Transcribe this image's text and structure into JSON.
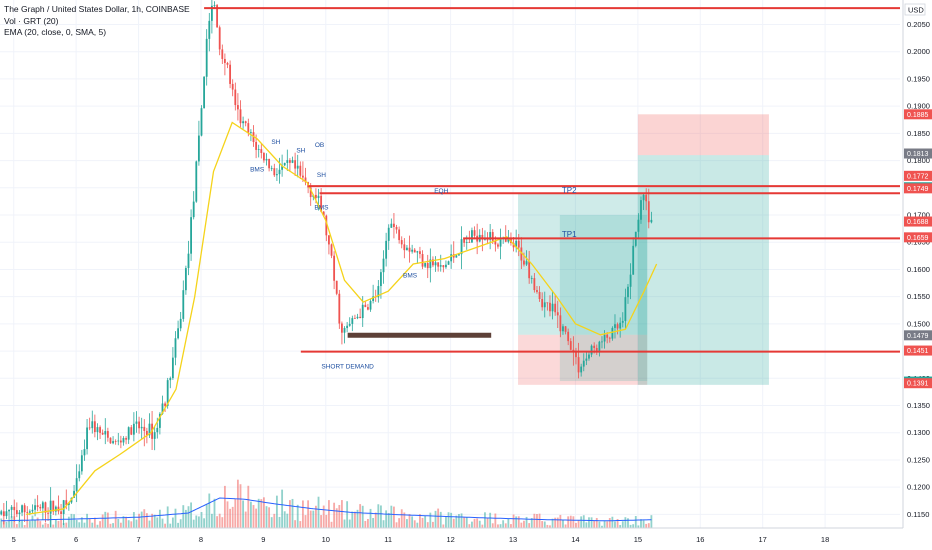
{
  "legend": {
    "title": "The Graph / United States Dollar, 1h, COINBASE",
    "vol": "Vol · GRT (20)",
    "ema": "EMA (20, close, 0, SMA, 5)"
  },
  "chart_data": {
    "type": "candlestick",
    "currency_label": "USD",
    "ylim": [
      0.1125,
      0.2095
    ],
    "y_ticks": [
      "0.2050",
      "0.2000",
      "0.1950",
      "0.1900",
      "0.1850",
      "0.1800",
      "0.1750",
      "0.1700",
      "0.1650",
      "0.1600",
      "0.1550",
      "0.1500",
      "0.1450",
      "0.1400",
      "0.1350",
      "0.1300",
      "0.1250",
      "0.1200",
      "0.1150"
    ],
    "x_ticks": [
      {
        "label": "5",
        "day": 5
      },
      {
        "label": "6",
        "day": 6
      },
      {
        "label": "7",
        "day": 7
      },
      {
        "label": "8",
        "day": 8
      },
      {
        "label": "9",
        "day": 9
      },
      {
        "label": "10",
        "day": 10
      },
      {
        "label": "11",
        "day": 11
      },
      {
        "label": "12",
        "day": 12
      },
      {
        "label": "13",
        "day": 13
      },
      {
        "label": "14",
        "day": 14
      },
      {
        "label": "15",
        "day": 15
      },
      {
        "label": "16",
        "day": 16
      },
      {
        "label": "17",
        "day": 17
      },
      {
        "label": "18",
        "day": 18
      }
    ],
    "xlim_days": [
      4.78,
      19.2
    ],
    "price_keypoints": [
      [
        4.8,
        0.115
      ],
      [
        5.5,
        0.116
      ],
      [
        5.9,
        0.1165
      ],
      [
        6.05,
        0.12
      ],
      [
        6.25,
        0.132
      ],
      [
        6.5,
        0.129
      ],
      [
        6.7,
        0.128
      ],
      [
        7.0,
        0.131
      ],
      [
        7.3,
        0.13
      ],
      [
        7.5,
        0.138
      ],
      [
        7.7,
        0.15
      ],
      [
        7.85,
        0.165
      ],
      [
        8.0,
        0.182
      ],
      [
        8.15,
        0.205
      ],
      [
        8.25,
        0.209
      ],
      [
        8.35,
        0.2
      ],
      [
        8.45,
        0.198
      ],
      [
        8.6,
        0.189
      ],
      [
        8.9,
        0.183
      ],
      [
        9.2,
        0.178
      ],
      [
        9.5,
        0.179
      ],
      [
        9.7,
        0.176
      ],
      [
        9.85,
        0.174
      ],
      [
        10.0,
        0.17
      ],
      [
        10.15,
        0.16
      ],
      [
        10.3,
        0.148
      ],
      [
        10.5,
        0.151
      ],
      [
        10.7,
        0.153
      ],
      [
        10.9,
        0.156
      ],
      [
        11.05,
        0.169
      ],
      [
        11.3,
        0.165
      ],
      [
        11.6,
        0.162
      ],
      [
        11.9,
        0.16
      ],
      [
        12.2,
        0.164
      ],
      [
        12.5,
        0.167
      ],
      [
        12.8,
        0.165
      ],
      [
        13.1,
        0.164
      ],
      [
        13.3,
        0.16
      ],
      [
        13.5,
        0.154
      ],
      [
        13.7,
        0.152
      ],
      [
        13.9,
        0.148
      ],
      [
        14.1,
        0.142
      ],
      [
        14.3,
        0.145
      ],
      [
        14.6,
        0.148
      ],
      [
        14.8,
        0.15
      ],
      [
        14.95,
        0.162
      ],
      [
        15.1,
        0.174
      ],
      [
        15.25,
        0.169
      ]
    ],
    "ema_keypoints": [
      [
        5.2,
        0.115
      ],
      [
        5.8,
        0.116
      ],
      [
        6.3,
        0.123
      ],
      [
        6.7,
        0.126
      ],
      [
        7.2,
        0.13
      ],
      [
        7.6,
        0.138
      ],
      [
        7.9,
        0.155
      ],
      [
        8.2,
        0.178
      ],
      [
        8.5,
        0.187
      ],
      [
        8.9,
        0.184
      ],
      [
        9.3,
        0.179
      ],
      [
        9.7,
        0.176
      ],
      [
        10.0,
        0.169
      ],
      [
        10.3,
        0.158
      ],
      [
        10.6,
        0.154
      ],
      [
        11.0,
        0.156
      ],
      [
        11.4,
        0.161
      ],
      [
        11.9,
        0.162
      ],
      [
        12.4,
        0.164
      ],
      [
        12.9,
        0.166
      ],
      [
        13.3,
        0.161
      ],
      [
        13.7,
        0.155
      ],
      [
        14.0,
        0.15
      ],
      [
        14.4,
        0.148
      ],
      [
        14.8,
        0.149
      ],
      [
        15.1,
        0.156
      ],
      [
        15.3,
        0.161
      ]
    ],
    "volume_ema_keypoints": [
      [
        4.8,
        0.12
      ],
      [
        6.0,
        0.15
      ],
      [
        7.0,
        0.18
      ],
      [
        7.8,
        0.25
      ],
      [
        8.3,
        0.5
      ],
      [
        8.7,
        0.48
      ],
      [
        9.2,
        0.4
      ],
      [
        9.8,
        0.32
      ],
      [
        10.4,
        0.26
      ],
      [
        11.2,
        0.22
      ],
      [
        12.5,
        0.17
      ],
      [
        13.5,
        0.14
      ],
      [
        14.5,
        0.12
      ],
      [
        15.3,
        0.14
      ]
    ],
    "horizontal_levels": [
      {
        "price": 0.208,
        "from_day": 8.05,
        "to_day": 19.2,
        "color": "#e53935"
      },
      {
        "price": 0.1753,
        "from_day": 9.72,
        "to_day": 19.2,
        "color": "#e53935"
      },
      {
        "price": 0.174,
        "from_day": 9.9,
        "to_day": 19.2,
        "color": "#e53935"
      },
      {
        "price": 0.1657,
        "from_day": 12.2,
        "to_day": 19.2,
        "color": "#e53935"
      },
      {
        "price": 0.1449,
        "from_day": 9.6,
        "to_day": 19.2,
        "color": "#e53935"
      }
    ],
    "demand_bar": {
      "price": 0.1479,
      "from_day": 10.35,
      "to_day": 12.65,
      "color": "#5d4037"
    },
    "position_boxes": [
      {
        "from_day": 13.08,
        "to_day": 15.15,
        "top": 0.174,
        "bottom": 0.148,
        "color": "rgba(38,166,154,0.22)"
      },
      {
        "from_day": 13.08,
        "to_day": 15.15,
        "top": 0.148,
        "bottom": 0.1388,
        "color": "rgba(239,83,80,0.22)"
      },
      {
        "from_day": 13.75,
        "to_day": 15.15,
        "top": 0.17,
        "bottom": 0.1395,
        "color": "rgba(38,166,154,0.18)"
      },
      {
        "from_day": 15.0,
        "to_day": 17.1,
        "top": 0.181,
        "bottom": 0.1388,
        "color": "rgba(38,166,154,0.25)"
      },
      {
        "from_day": 15.0,
        "to_day": 17.1,
        "top": 0.1885,
        "bottom": 0.181,
        "color": "rgba(239,83,80,0.25)"
      }
    ],
    "annotations": [
      {
        "text": "BMS",
        "day": 8.9,
        "price": 0.178,
        "size": "s"
      },
      {
        "text": "SH",
        "day": 9.2,
        "price": 0.183,
        "size": "s"
      },
      {
        "text": "SH",
        "day": 9.6,
        "price": 0.1815,
        "size": "s"
      },
      {
        "text": "OB",
        "day": 9.9,
        "price": 0.1825,
        "size": "s"
      },
      {
        "text": "SH",
        "day": 9.93,
        "price": 0.177,
        "size": "s"
      },
      {
        "text": "BMS",
        "day": 9.93,
        "price": 0.171,
        "size": "s"
      },
      {
        "text": "EQH",
        "day": 11.85,
        "price": 0.174,
        "size": "s"
      },
      {
        "text": "BMS",
        "day": 11.35,
        "price": 0.1585,
        "size": "s"
      },
      {
        "text": "TP2",
        "day": 13.9,
        "price": 0.174,
        "size": "l"
      },
      {
        "text": "TP1",
        "day": 13.9,
        "price": 0.166,
        "size": "l"
      },
      {
        "text": "SHORT DEMAND",
        "day": 10.35,
        "price": 0.1418,
        "size": "s"
      }
    ],
    "price_tags": [
      {
        "text": "0.1885",
        "price": 0.1885,
        "color": "#ef5350"
      },
      {
        "text": "0.1813",
        "price": 0.1813,
        "color": "#787b86"
      },
      {
        "text": "0.1772",
        "price": 0.1772,
        "color": "#ef5350"
      },
      {
        "text": "0.1751",
        "price": 0.1751,
        "color": "#26a69a"
      },
      {
        "text": "0.1749",
        "price": 0.1749,
        "color": "#ef5350"
      },
      {
        "text": "0.1688",
        "price": 0.1688,
        "color": "#ef5350"
      },
      {
        "text": "0.1659",
        "price": 0.1659,
        "color": "#ef5350"
      },
      {
        "text": "0.1479",
        "price": 0.1479,
        "color": "#787b86"
      },
      {
        "text": "0.1451",
        "price": 0.1451,
        "color": "#ef5350"
      },
      {
        "text": "0.1394",
        "price": 0.1394,
        "color": "#26a69a"
      },
      {
        "text": "0.1391",
        "price": 0.1391,
        "color": "#ef5350"
      }
    ],
    "colors": {
      "up": "#26a69a",
      "down": "#ef5350",
      "ema": "#f5d31a",
      "volume_ema": "#2962ff",
      "grid": "#f0f3fa"
    }
  }
}
